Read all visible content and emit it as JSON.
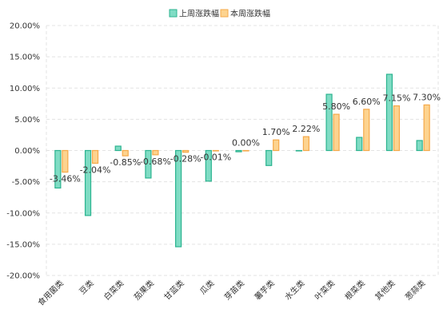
{
  "chart_data": {
    "type": "bar",
    "categories": [
      "食用菌类",
      "豆类",
      "白菜类",
      "茄果类",
      "甘蓝类",
      "瓜类",
      "芽苗类",
      "薯芋类",
      "水生类",
      "叶菜类",
      "根菜类",
      "其他类",
      "葱蒜类"
    ],
    "series": [
      {
        "name": "上周涨跌幅",
        "color": "#7fdcc4",
        "border": "#2bb38f",
        "values": [
          -6.0,
          -10.4,
          0.7,
          -4.4,
          -15.4,
          -4.9,
          -0.2,
          -2.4,
          0,
          9.0,
          2.1,
          12.2,
          1.6
        ]
      },
      {
        "name": "本周涨跌幅",
        "color": "#fdd38f",
        "border": "#f5a94a",
        "values": [
          -3.46,
          -2.04,
          -0.85,
          -0.68,
          -0.28,
          -0.01,
          0.0,
          1.7,
          2.22,
          5.8,
          6.6,
          7.15,
          7.3
        ],
        "value_labels": [
          "-3.46%",
          "-2.04%",
          "-0.85%",
          "-0.68%",
          "-0.28%",
          "-0.01%",
          "0.00%",
          "1.70%",
          "2.22%",
          "5.80%",
          "6.60%",
          "7.15%",
          "7.30%"
        ]
      }
    ],
    "ylim": [
      -20,
      20
    ],
    "yticks": [
      {
        "value": -20,
        "label": "-20.00%"
      },
      {
        "value": -15,
        "label": "-15.00%"
      },
      {
        "value": -10,
        "label": "-10.00%"
      },
      {
        "value": -5,
        "label": "-5.00%"
      },
      {
        "value": 0,
        "label": "0.00%"
      },
      {
        "value": 5,
        "label": "5.00%"
      },
      {
        "value": 10,
        "label": "10.00%"
      },
      {
        "value": 15,
        "label": "15.00%"
      },
      {
        "value": 20,
        "label": "20.00%"
      }
    ],
    "grid": true,
    "legend": "top"
  }
}
